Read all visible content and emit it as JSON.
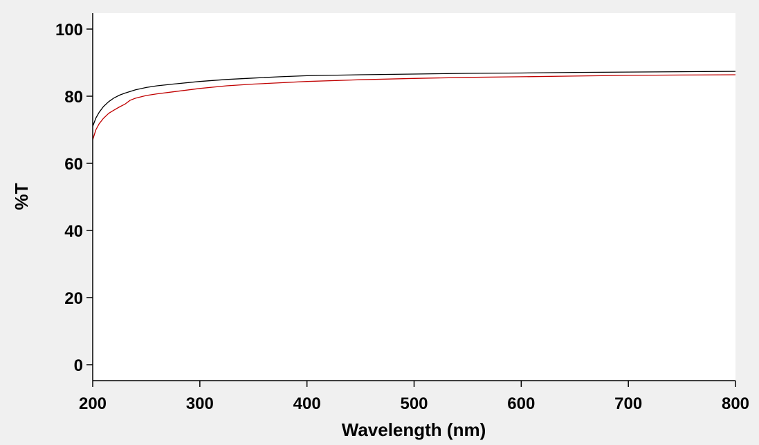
{
  "chart_data": {
    "type": "line",
    "title": "",
    "xlabel": "Wavelength (nm)",
    "ylabel": "%T",
    "xlim": [
      200,
      800
    ],
    "ylim": [
      -5,
      105
    ],
    "grid": false,
    "legend": "none",
    "x_ticks": [
      "200",
      "300",
      "400",
      "500",
      "600",
      "700",
      "800"
    ],
    "y_ticks": [
      "0",
      "20",
      "40",
      "60",
      "80",
      "100"
    ],
    "series": [
      {
        "color": "#000000",
        "points": [
          [
            200,
            71.0
          ],
          [
            203,
            73.5
          ],
          [
            206,
            75.2
          ],
          [
            210,
            76.9
          ],
          [
            215,
            78.4
          ],
          [
            220,
            79.5
          ],
          [
            225,
            80.3
          ],
          [
            230,
            80.9
          ],
          [
            240,
            81.9
          ],
          [
            250,
            82.6
          ],
          [
            260,
            83.1
          ],
          [
            275,
            83.6
          ],
          [
            300,
            84.4
          ],
          [
            325,
            85.0
          ],
          [
            350,
            85.4
          ],
          [
            375,
            85.8
          ],
          [
            400,
            86.1
          ],
          [
            450,
            86.4
          ],
          [
            500,
            86.6
          ],
          [
            550,
            86.8
          ],
          [
            600,
            86.9
          ],
          [
            650,
            87.1
          ],
          [
            700,
            87.2
          ],
          [
            750,
            87.3
          ],
          [
            800,
            87.4
          ]
        ]
      },
      {
        "color": "#c00000",
        "points": [
          [
            200,
            67.0
          ],
          [
            203,
            70.0
          ],
          [
            206,
            71.8
          ],
          [
            210,
            73.4
          ],
          [
            215,
            74.9
          ],
          [
            220,
            75.9
          ],
          [
            225,
            76.8
          ],
          [
            230,
            77.6
          ],
          [
            235,
            78.8
          ],
          [
            240,
            79.4
          ],
          [
            250,
            80.2
          ],
          [
            260,
            80.7
          ],
          [
            275,
            81.3
          ],
          [
            300,
            82.3
          ],
          [
            325,
            83.1
          ],
          [
            350,
            83.6
          ],
          [
            375,
            84.0
          ],
          [
            400,
            84.4
          ],
          [
            450,
            84.9
          ],
          [
            500,
            85.3
          ],
          [
            550,
            85.6
          ],
          [
            600,
            85.8
          ],
          [
            650,
            86.0
          ],
          [
            700,
            86.2
          ],
          [
            750,
            86.3
          ],
          [
            800,
            86.4
          ]
        ]
      }
    ]
  }
}
